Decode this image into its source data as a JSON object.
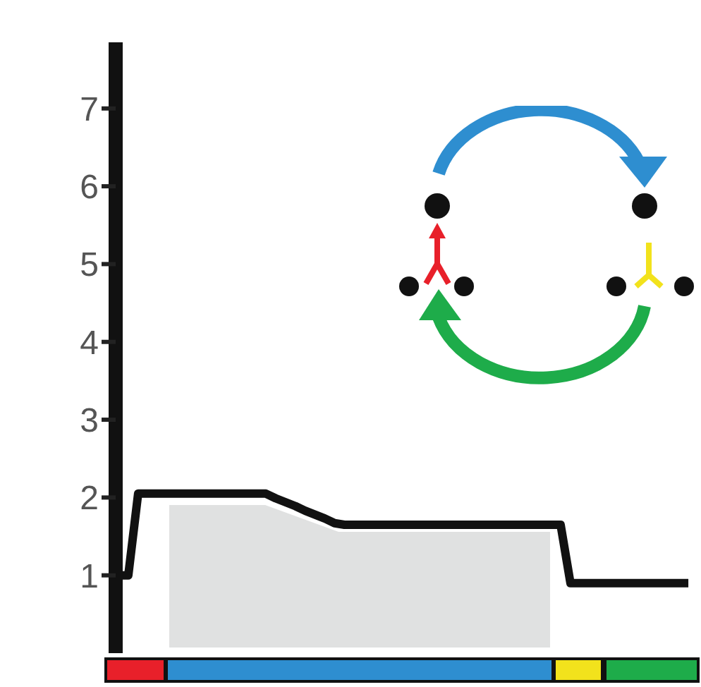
{
  "chart_data": {
    "type": "line",
    "categories": [
      null,
      null,
      null,
      null,
      null,
      null,
      null,
      null,
      null,
      null,
      null,
      null,
      null,
      null,
      null,
      null,
      null,
      null,
      null,
      null,
      null,
      null,
      null,
      null,
      null,
      null,
      null,
      null,
      null,
      null,
      null,
      null,
      null,
      null,
      null,
      null,
      null,
      null,
      null,
      null,
      null,
      null,
      null,
      null,
      null,
      null,
      null,
      null,
      null,
      null,
      null,
      null,
      null,
      null,
      null,
      null,
      null,
      null,
      null,
      null
    ],
    "series": [
      {
        "color": "#111111",
        "values": [
          1.0,
          1.0,
          2.05,
          2.05,
          2.05,
          2.05,
          2.05,
          2.05,
          2.05,
          2.05,
          2.05,
          2.05,
          2.05,
          2.05,
          2.05,
          2.05,
          1.99,
          1.94,
          1.89,
          1.83,
          1.78,
          1.73,
          1.67,
          1.65,
          1.65,
          1.65,
          1.65,
          1.65,
          1.65,
          1.65,
          1.65,
          1.65,
          1.65,
          1.65,
          1.65,
          1.65,
          1.65,
          1.65,
          1.65,
          1.65,
          1.65,
          1.65,
          1.65,
          1.65,
          1.65,
          1.65,
          0.9,
          0.9,
          0.9,
          0.9,
          0.9,
          0.9,
          0.9,
          0.9,
          0.9,
          0.9,
          0.9,
          0.9,
          0.9,
          null
        ]
      }
    ],
    "ylim": [
      0,
      7.85
    ],
    "yticks": [
      1,
      2,
      3,
      4,
      5,
      6,
      7
    ],
    "tick_labels": "y",
    "grid": false,
    "legend": false,
    "marker": "none",
    "line_style": "solid"
  }
}
